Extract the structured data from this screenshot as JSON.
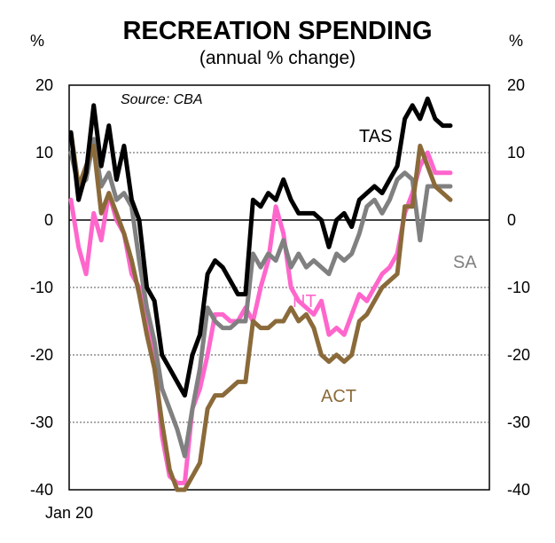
{
  "chart_data": {
    "type": "line",
    "title": "RECREATION SPENDING",
    "subtitle": "(annual % change)",
    "left_unit": "%",
    "right_unit": "%",
    "source": "Source: CBA",
    "x_start_label": "Jan 20",
    "ylim": [
      -40,
      20
    ],
    "yticks": [
      20,
      10,
      0,
      -10,
      -20,
      -30,
      -40
    ],
    "grid": true,
    "series": [
      {
        "name": "TAS",
        "color": "#000000",
        "values": [
          13,
          3,
          7,
          17,
          8,
          14,
          6,
          11,
          3,
          0,
          -10,
          -12,
          -20,
          -22,
          -24,
          -26,
          -20,
          -17,
          -8,
          -6,
          -7,
          -9,
          -11,
          -11,
          3,
          2,
          4,
          3,
          6,
          3,
          1,
          1,
          1,
          0,
          -4,
          0,
          1,
          -1,
          3,
          4,
          5,
          4,
          6,
          8,
          15,
          17,
          15,
          18,
          15,
          14,
          14
        ]
      },
      {
        "name": "SA",
        "color": "#808080",
        "values": [
          10,
          5,
          6,
          12,
          5,
          7,
          3,
          4,
          2,
          -6,
          -13,
          -18,
          -25,
          -28,
          -31,
          -35,
          -28,
          -22,
          -13,
          -15,
          -16,
          -16,
          -15,
          -15,
          -5,
          -7,
          -5,
          -6,
          -3,
          -7,
          -5,
          -7,
          -6,
          -7,
          -8,
          -5,
          -6,
          -5,
          -2,
          2,
          3,
          1,
          3,
          6,
          7,
          6,
          -3,
          5,
          5,
          5,
          5
        ]
      },
      {
        "name": "NT",
        "color": "#ff66cc",
        "values": [
          3,
          -4,
          -8,
          1,
          -3,
          4,
          0,
          -2,
          -8,
          -10,
          -16,
          -20,
          -32,
          -38,
          -39,
          -39,
          -28,
          -25,
          -20,
          -14,
          -14,
          -15,
          -15,
          -13,
          -15,
          -10,
          -6,
          2,
          -2,
          -10,
          -12,
          -13,
          -14,
          -12,
          -17,
          -16,
          -17,
          -14,
          -11,
          -12,
          -10,
          -8,
          -7,
          -5,
          1,
          4,
          8,
          10,
          7,
          7,
          7
        ]
      },
      {
        "name": "ACT",
        "color": "#8b6a3a",
        "values": [
          13,
          5,
          8,
          11,
          1,
          4,
          1,
          -2,
          -6,
          -11,
          -17,
          -22,
          -30,
          -37,
          -40,
          -40,
          -38,
          -36,
          -28,
          -26,
          -26,
          -25,
          -24,
          -24,
          -15,
          -16,
          -16,
          -15,
          -15,
          -13,
          -15,
          -14,
          -16,
          -20,
          -21,
          -20,
          -21,
          -20,
          -15,
          -14,
          -12,
          -10,
          -9,
          -8,
          2,
          2,
          11,
          8,
          5,
          4,
          3
        ]
      }
    ]
  }
}
